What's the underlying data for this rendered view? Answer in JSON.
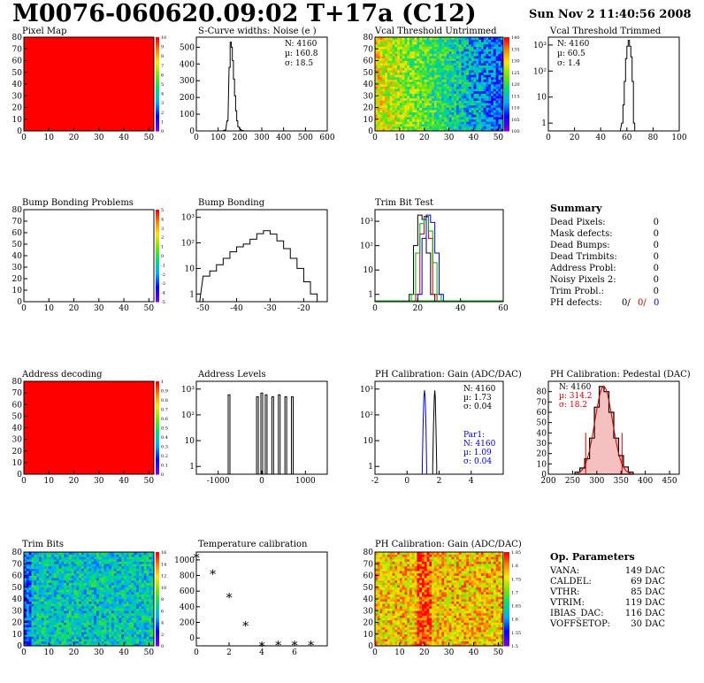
{
  "header": {
    "title": "M0076-060620.09:02 T+17a (C12)",
    "date": "Sun Nov  2 11:40:56 2008"
  },
  "panels": {
    "pixel_map": {
      "title": "Pixel Map",
      "xticks": [
        "0",
        "10",
        "20",
        "30",
        "40",
        "50"
      ],
      "yticks": [
        "0",
        "10",
        "20",
        "30",
        "40",
        "50",
        "60",
        "70",
        "80"
      ],
      "zticks": [
        "0",
        "1",
        "2",
        "3",
        "4",
        "5",
        "6",
        "7",
        "8",
        "9",
        "10"
      ],
      "fill": "#ff0000"
    },
    "scurve": {
      "title": "S-Curve widths: Noise (e )",
      "xticks": [
        "0",
        "100",
        "200",
        "300",
        "400",
        "500",
        "600"
      ],
      "yticks": [
        "0",
        "100",
        "200",
        "300",
        "400",
        "500"
      ],
      "stats": [
        "N: 4160",
        "µ:  160.8",
        "σ:  18.5"
      ]
    },
    "vcal_untrimmed": {
      "title": "Vcal Threshold Untrimmed",
      "xticks": [
        "0",
        "10",
        "20",
        "30",
        "40",
        "50"
      ],
      "yticks": [
        "0",
        "10",
        "20",
        "30",
        "40",
        "50",
        "60",
        "70",
        "80"
      ],
      "zticks": [
        "100",
        "105",
        "110",
        "115",
        "120",
        "125",
        "130",
        "135",
        "140"
      ]
    },
    "vcal_trimmed": {
      "title": "Vcal Threshold Trimmed",
      "xticks": [
        "0",
        "20",
        "40",
        "60",
        "80",
        "100"
      ],
      "yticks": [
        "1",
        "10",
        "10²",
        "10³"
      ],
      "stats": [
        "N: 4160",
        "µ:  60.5",
        "σ:  1.4"
      ]
    },
    "bump_problems": {
      "title": "Bump Bonding Problems",
      "xticks": [
        "0",
        "10",
        "20",
        "30",
        "40",
        "50"
      ],
      "yticks": [
        "0",
        "10",
        "20",
        "30",
        "40",
        "50",
        "60",
        "70",
        "80"
      ],
      "zticks": [
        "-5",
        "-4",
        "-3",
        "-2",
        "-1",
        "0",
        "1",
        "2",
        "3",
        "4",
        "5"
      ]
    },
    "bump_bonding": {
      "title": "Bump Bonding",
      "xticks": [
        "-50",
        "-40",
        "-30",
        "-20"
      ],
      "yticks": [
        "1",
        "10",
        "10²",
        "10³"
      ]
    },
    "trim_bit_test": {
      "title": "Trim Bit Test",
      "xticks": [
        "0",
        "20",
        "40",
        "60"
      ],
      "yticks": [
        "1",
        "10",
        "10²",
        "10³"
      ]
    },
    "summary": {
      "title": "Summary",
      "rows": [
        {
          "label": "Dead Pixels:",
          "value": "0"
        },
        {
          "label": "Mask defects:",
          "value": "0"
        },
        {
          "label": "Dead Bumps:",
          "value": "0"
        },
        {
          "label": "Dead Trimbits:",
          "value": "0"
        },
        {
          "label": "Address Probl:",
          "value": "0"
        },
        {
          "label": "Noisy Pixels 2:",
          "value": "0"
        },
        {
          "label": "Trim Probl.:",
          "value": "0"
        }
      ],
      "ph_label": "PH defects:",
      "ph_values": [
        {
          "value": "0/",
          "color": "#000000"
        },
        {
          "value": "0/",
          "color": "#cc0000"
        },
        {
          "value": "0",
          "color": "#0000cc"
        }
      ]
    },
    "address_decoding": {
      "title": "Address decoding",
      "xticks": [
        "0",
        "10",
        "20",
        "30",
        "40",
        "50"
      ],
      "yticks": [
        "0",
        "10",
        "20",
        "30",
        "40",
        "50",
        "60",
        "70",
        "80"
      ],
      "zticks": [
        "0",
        "0.1",
        "0.2",
        "0.3",
        "0.4",
        "0.5",
        "0.6",
        "0.7",
        "0.8",
        "0.9",
        "1"
      ],
      "fill": "#ff0000"
    },
    "address_levels": {
      "title": "Address Levels",
      "xticks": [
        "-1000",
        "0",
        "1000"
      ],
      "yticks": [
        "1",
        "10",
        "10²",
        "10³"
      ]
    },
    "ph_gain": {
      "title": "PH Calibration: Gain (ADC/DAC)",
      "xticks": [
        "-2",
        "0",
        "2",
        "4"
      ],
      "yticks": [
        "1",
        "10",
        "10²",
        "10³"
      ],
      "stats": [
        "N: 4160",
        "µ:  1.73",
        "σ:  0.04"
      ],
      "par1": [
        "Par1:",
        "N: 4160",
        "µ:  1.09",
        "σ:  0.04"
      ]
    },
    "ph_pedestal": {
      "title": "PH Calibration: Pedestal (DAC)",
      "xticks": [
        "200",
        "250",
        "300",
        "350",
        "400",
        "450"
      ],
      "yticks": [
        "0",
        "10",
        "20",
        "30",
        "40",
        "50",
        "60",
        "70",
        "80"
      ],
      "stats": [
        "N: 4160",
        "µ:  314.2",
        "σ:  18.2"
      ]
    },
    "trim_bits": {
      "title": "Trim Bits",
      "xticks": [
        "0",
        "10",
        "20",
        "30",
        "40",
        "50"
      ],
      "yticks": [
        "0",
        "10",
        "20",
        "30",
        "40",
        "50",
        "60",
        "70",
        "80"
      ],
      "zticks": [
        "0",
        "2",
        "4",
        "6",
        "8",
        "10",
        "12",
        "14",
        "16"
      ]
    },
    "temperature": {
      "title": "Temperature calibration",
      "xticks": [
        "0",
        "2",
        "4",
        "6"
      ],
      "yticks": [
        "0",
        "200",
        "400",
        "600",
        "800",
        "1000"
      ]
    },
    "ph_gain_map": {
      "title": "PH Calibration: Gain (ADC/DAC)",
      "xticks": [
        "0",
        "10",
        "20",
        "30",
        "40",
        "50"
      ],
      "yticks": [
        "0",
        "10",
        "20",
        "30",
        "40",
        "50",
        "60",
        "70",
        "80"
      ],
      "zticks": [
        "1.5",
        "1.55",
        "1.6",
        "1.65",
        "1.7",
        "1.75",
        "1.8",
        "1.85"
      ]
    },
    "op_params": {
      "title": "Op. Parameters",
      "rows": [
        {
          "label": "VANA:",
          "value": "149 DAC"
        },
        {
          "label": "CALDEL:",
          "value": "69 DAC"
        },
        {
          "label": "VTHR:",
          "value": "85 DAC"
        },
        {
          "label": "VTRIM:",
          "value": "119 DAC"
        },
        {
          "label": "IBIAS_DAC:",
          "value": "116 DAC"
        },
        {
          "label": "VOFFSETOP:",
          "value": "30 DAC"
        }
      ]
    }
  },
  "chart_data": [
    {
      "type": "heatmap",
      "title": "Pixel Map",
      "xlim": [
        0,
        52
      ],
      "ylim": [
        0,
        80
      ],
      "zlim": [
        0,
        10
      ],
      "description_value": "all pixels at maximum (10)"
    },
    {
      "type": "bar",
      "title": "S-Curve widths: Noise (e )",
      "xlim": [
        0,
        600
      ],
      "ylim": [
        0,
        560
      ],
      "x": [
        130,
        140,
        150,
        155,
        160,
        165,
        170,
        175,
        180,
        185,
        190,
        200,
        210
      ],
      "values": [
        5,
        60,
        380,
        530,
        500,
        420,
        310,
        210,
        120,
        60,
        25,
        8,
        2
      ]
    },
    {
      "type": "heatmap",
      "title": "Vcal Threshold Untrimmed",
      "xlim": [
        0,
        52
      ],
      "ylim": [
        0,
        80
      ],
      "zlim": [
        100,
        140
      ]
    },
    {
      "type": "bar",
      "title": "Vcal Threshold Trimmed",
      "yscale": "log",
      "xlim": [
        0,
        100
      ],
      "ylim": [
        0.5,
        2000
      ],
      "x": [
        56,
        57,
        58,
        59,
        60,
        61,
        62,
        63,
        64,
        65
      ],
      "values": [
        1,
        5,
        40,
        300,
        900,
        1500,
        900,
        350,
        40,
        1
      ]
    },
    {
      "type": "heatmap",
      "title": "Bump Bonding Problems",
      "xlim": [
        0,
        52
      ],
      "ylim": [
        0,
        80
      ],
      "zlim": [
        -5,
        5
      ]
    },
    {
      "type": "bar",
      "title": "Bump Bonding",
      "yscale": "log",
      "xlim": [
        -50,
        -13
      ],
      "ylim": [
        0.5,
        2000
      ],
      "x": [
        -50,
        -48,
        -46,
        -44,
        -42,
        -40,
        -38,
        -36,
        -34,
        -32,
        -30,
        -28,
        -26,
        -24,
        -22,
        -20,
        -18
      ],
      "values": [
        5,
        8,
        14,
        25,
        45,
        70,
        90,
        140,
        230,
        300,
        220,
        120,
        60,
        25,
        10,
        3,
        1
      ]
    },
    {
      "type": "line",
      "title": "Trim Bit Test",
      "yscale": "log",
      "xlim": [
        0,
        60
      ],
      "ylim": [
        0.5,
        3000
      ],
      "series": [
        {
          "color": "#000000",
          "x": [
            16,
            18,
            20,
            22,
            24,
            26
          ],
          "values": [
            1,
            100,
            1800,
            1200,
            50,
            1
          ]
        },
        {
          "color": "#cc0000",
          "x": [
            19,
            21,
            23,
            25,
            27
          ],
          "values": [
            1,
            300,
            1600,
            200,
            1
          ]
        },
        {
          "color": "#00aa00",
          "x": [
            17,
            19,
            21,
            23,
            25,
            27,
            29
          ],
          "values": [
            1,
            50,
            800,
            1500,
            400,
            20,
            1
          ]
        },
        {
          "color": "#0000cc",
          "x": [
            20,
            22,
            24,
            26,
            28,
            30
          ],
          "values": [
            1,
            200,
            1800,
            900,
            50,
            1
          ]
        }
      ]
    },
    {
      "type": "heatmap",
      "title": "Address decoding",
      "xlim": [
        0,
        52
      ],
      "ylim": [
        0,
        80
      ],
      "zlim": [
        0,
        1
      ],
      "description_value": "all pixels at 1"
    },
    {
      "type": "bar",
      "title": "Address Levels",
      "yscale": "log",
      "xlim": [
        -1500,
        1500
      ],
      "ylim": [
        0.5,
        2000
      ],
      "x": [
        -750,
        -100,
        0,
        100,
        250,
        400,
        550,
        700
      ],
      "values": [
        600,
        500,
        700,
        600,
        500,
        600,
        500,
        500
      ]
    },
    {
      "type": "line",
      "title": "PH Calibration: Gain (ADC/DAC)",
      "yscale": "log",
      "xlim": [
        -2,
        6
      ],
      "ylim": [
        0.5,
        2000
      ],
      "series": [
        {
          "name": "Gain",
          "color": "#000000",
          "x": [
            1.6,
            1.65,
            1.7,
            1.73,
            1.76,
            1.8,
            1.85
          ],
          "values": [
            1,
            40,
            500,
            900,
            500,
            40,
            1
          ]
        },
        {
          "name": "Par1",
          "color": "#0000cc",
          "x": [
            0.95,
            1.0,
            1.05,
            1.09,
            1.13,
            1.18,
            1.22
          ],
          "values": [
            1,
            40,
            500,
            900,
            500,
            40,
            1
          ]
        }
      ]
    },
    {
      "type": "bar",
      "title": "PH Calibration: Pedestal (DAC)",
      "xlim": [
        200,
        470
      ],
      "ylim": [
        0,
        90
      ],
      "x": [
        260,
        270,
        280,
        290,
        300,
        310,
        320,
        330,
        340,
        350,
        360,
        370
      ],
      "values": [
        2,
        6,
        15,
        35,
        65,
        85,
        80,
        60,
        35,
        18,
        7,
        2
      ]
    },
    {
      "type": "heatmap",
      "title": "Trim Bits",
      "xlim": [
        0,
        52
      ],
      "ylim": [
        0,
        80
      ],
      "zlim": [
        0,
        16
      ]
    },
    {
      "type": "scatter",
      "title": "Temperature calibration",
      "xlim": [
        0,
        8
      ],
      "ylim": [
        -100,
        1100
      ],
      "x": [
        0,
        1,
        2,
        3,
        4,
        5,
        6,
        7
      ],
      "values": [
        1060,
        850,
        550,
        190,
        -70,
        -60,
        -60,
        -60
      ]
    },
    {
      "type": "heatmap",
      "title": "PH Calibration: Gain (ADC/DAC)",
      "xlim": [
        0,
        52
      ],
      "ylim": [
        0,
        80
      ],
      "zlim": [
        1.5,
        1.85
      ]
    }
  ]
}
